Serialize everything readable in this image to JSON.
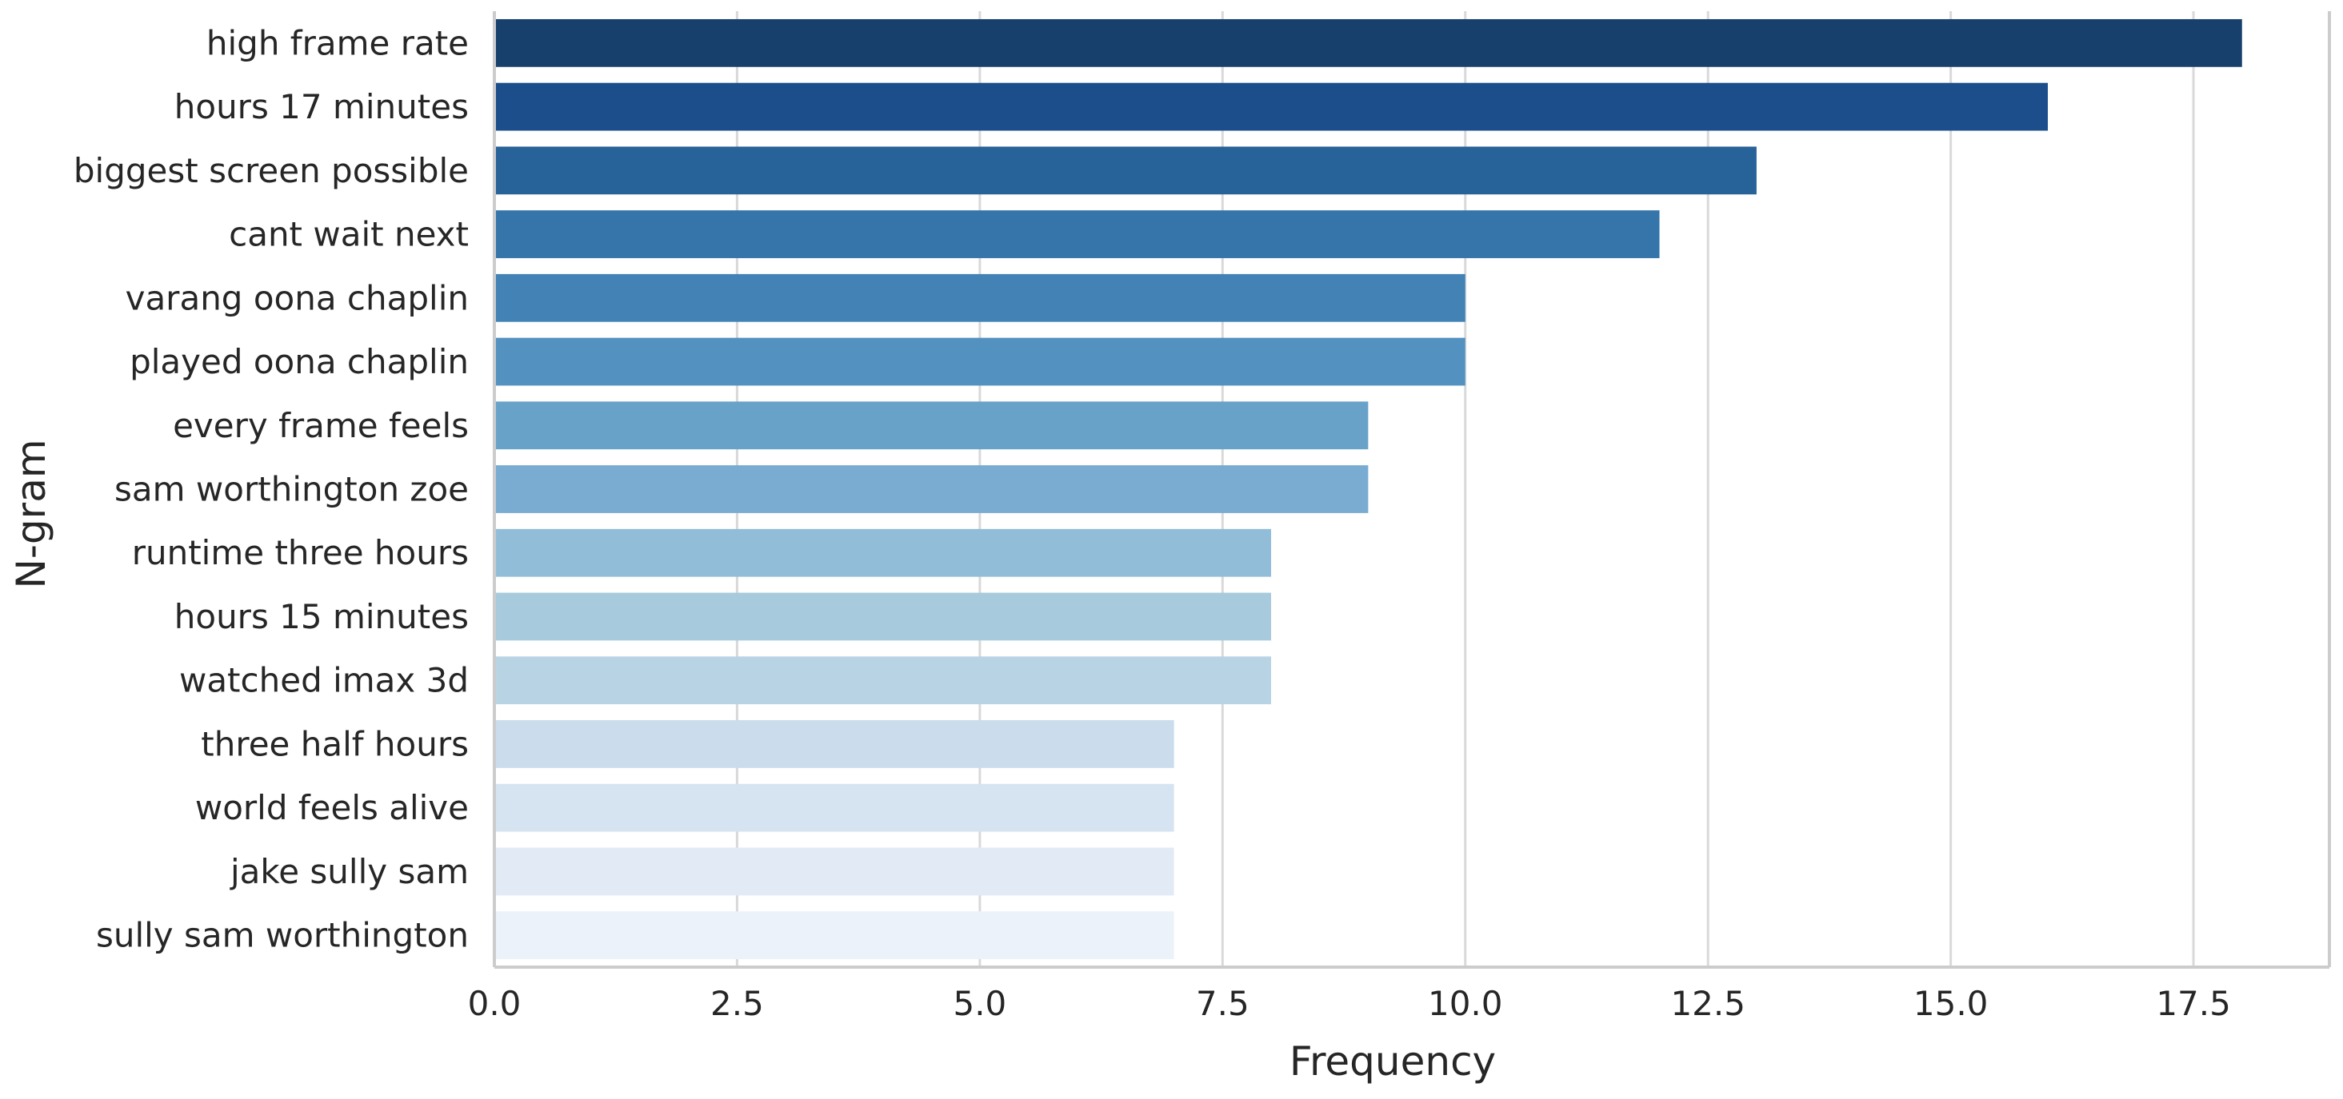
{
  "chart_data": {
    "type": "bar",
    "orientation": "horizontal",
    "categories": [
      "high frame rate",
      "hours 17 minutes",
      "biggest screen possible",
      "cant wait next",
      "varang oona chaplin",
      "played oona chaplin",
      "every frame feels",
      "sam worthington zoe",
      "runtime three hours",
      "hours 15 minutes",
      "watched imax 3d",
      "three half hours",
      "world feels alive",
      "jake sully sam",
      "sully sam worthington"
    ],
    "values": [
      18,
      16,
      13,
      12,
      10,
      10,
      9,
      9,
      8,
      8,
      8,
      7,
      7,
      7,
      7
    ],
    "xlabel": "Frequency",
    "ylabel": "N-gram",
    "xlim": [
      0,
      18.9
    ],
    "x_ticks": [
      "0.0",
      "2.5",
      "5.0",
      "7.5",
      "10.0",
      "12.5",
      "15.0",
      "17.5"
    ],
    "x_tick_values": [
      0,
      2.5,
      5,
      7.5,
      10,
      12.5,
      15,
      17.5
    ],
    "grid": "vertical",
    "palette": "Blues_r",
    "colors": [
      "#17406d",
      "#1b4e8a",
      "#276298",
      "#3575aa",
      "#4282b4",
      "#5391c1",
      "#68a2c8",
      "#79acd0",
      "#92bdd8",
      "#a8cadd",
      "#b8d4e4",
      "#cbdcec",
      "#d6e3f0",
      "#e2ebf5",
      "#ecf2fa"
    ],
    "grid_color": "#d9d9d9",
    "spine_color": "#cccccc"
  }
}
